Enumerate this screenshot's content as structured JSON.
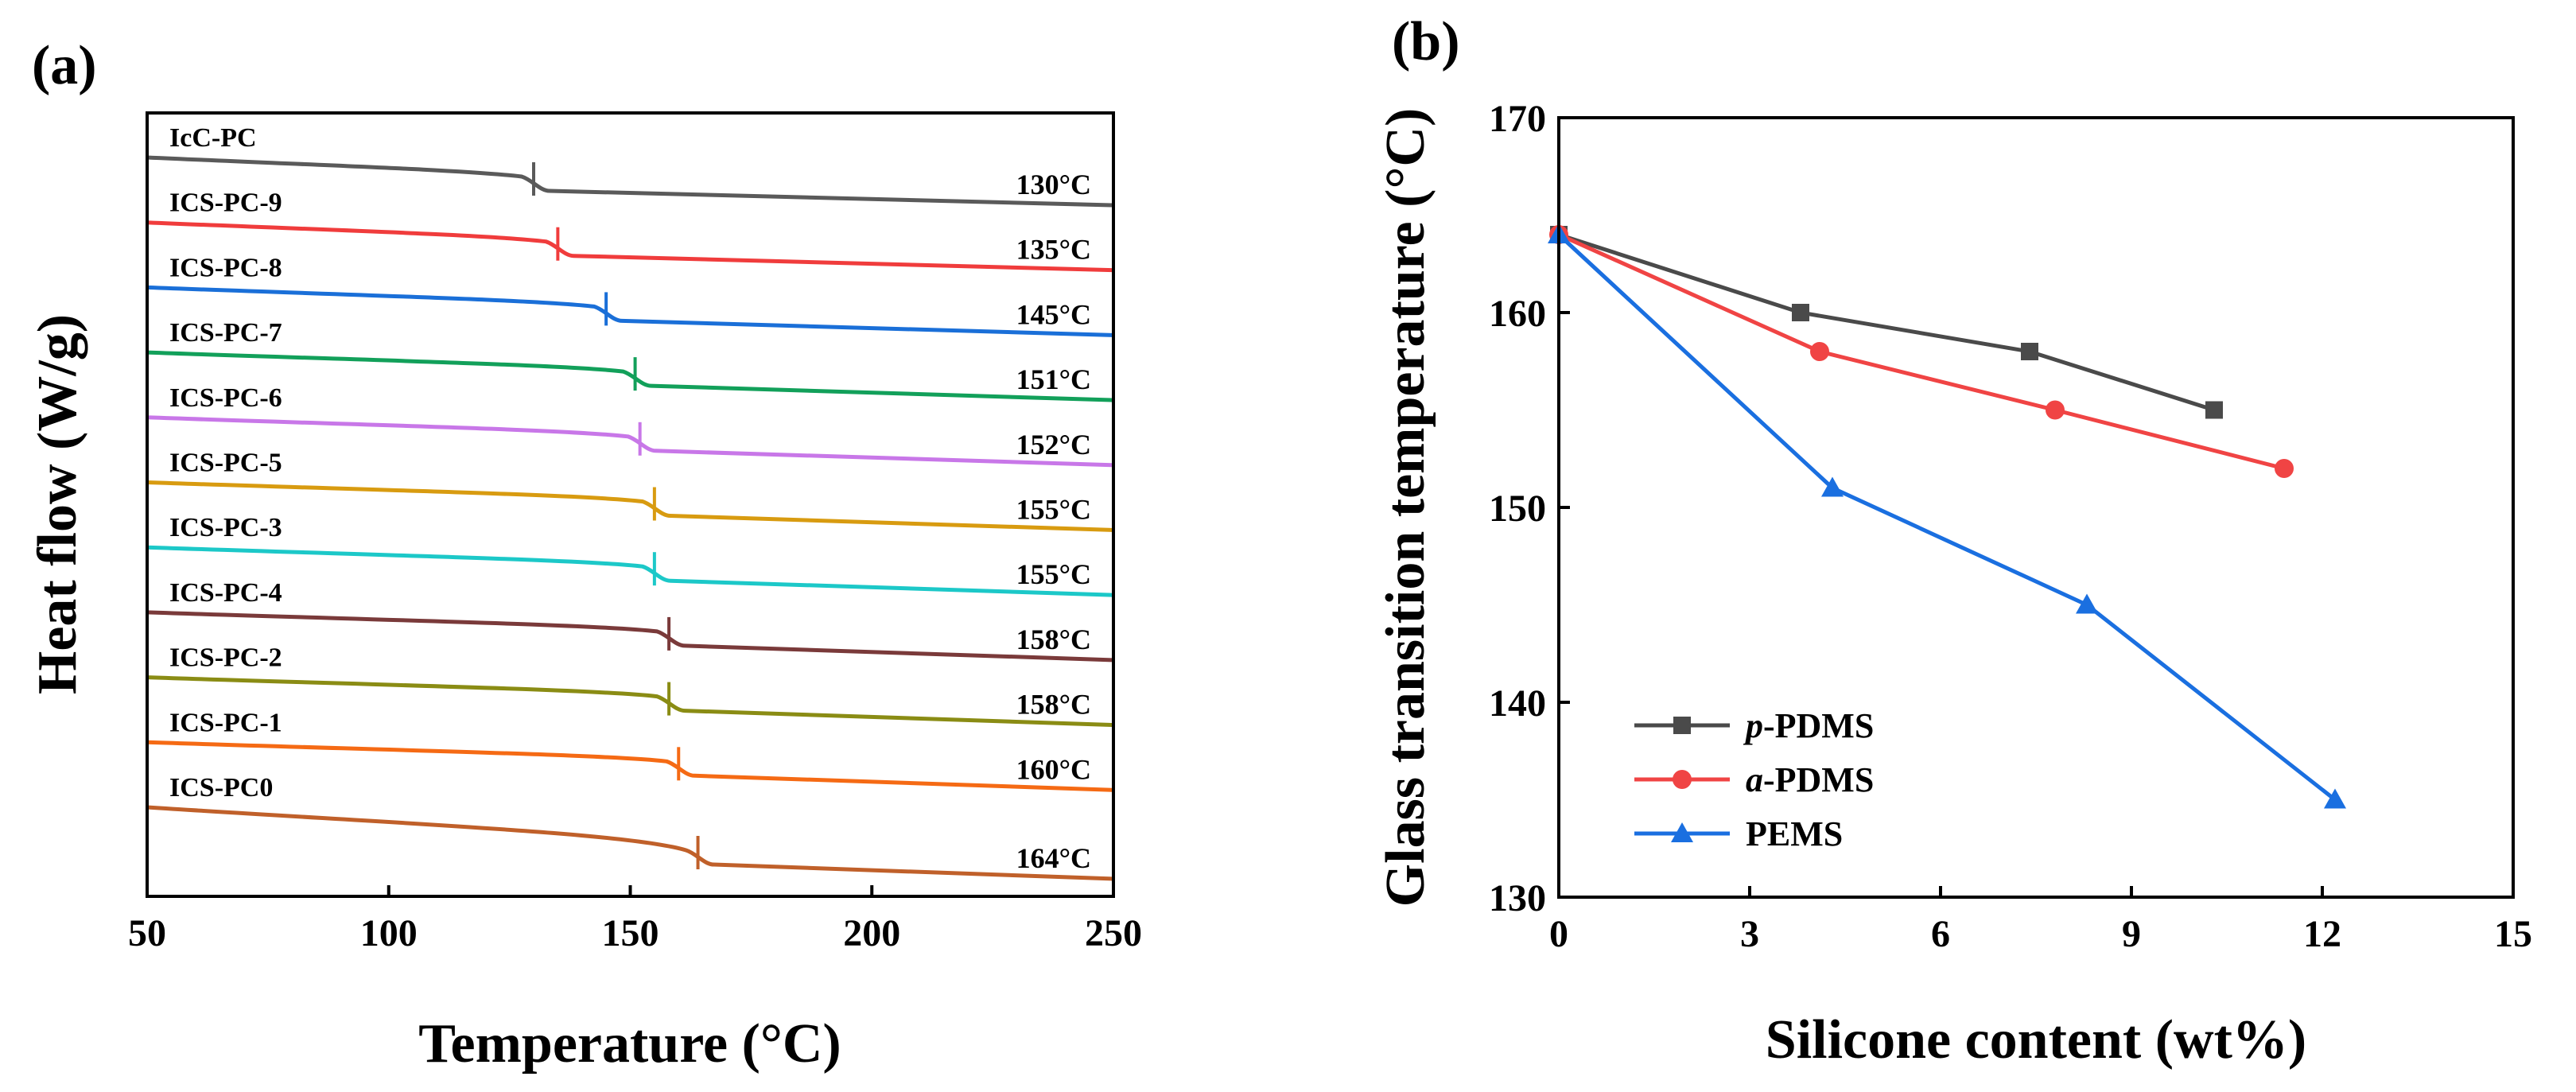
{
  "chart_data": [
    {
      "type": "line",
      "panel_label": "(a)",
      "xlabel": "Temperature (°C)",
      "ylabel": "Heat flow (W/g)",
      "xlim": [
        50,
        250
      ],
      "xticks": [
        50,
        100,
        150,
        200,
        250
      ],
      "series": [
        {
          "name": "IcC-PC",
          "tg": 130,
          "tg_label": "130°C",
          "color": "#5a5a5a"
        },
        {
          "name": "ICS-PC-9",
          "tg": 135,
          "tg_label": "135°C",
          "color": "#f03c3c"
        },
        {
          "name": "ICS-PC-8",
          "tg": 145,
          "tg_label": "145°C",
          "color": "#1a6fd8"
        },
        {
          "name": "ICS-PC-7",
          "tg": 151,
          "tg_label": "151°C",
          "color": "#12a05a"
        },
        {
          "name": "ICS-PC-6",
          "tg": 152,
          "tg_label": "152°C",
          "color": "#c877e8"
        },
        {
          "name": "ICS-PC-5",
          "tg": 155,
          "tg_label": "155°C",
          "color": "#d89b10"
        },
        {
          "name": "ICS-PC-3",
          "tg": 155,
          "tg_label": "155°C",
          "color": "#1cc8c8"
        },
        {
          "name": "ICS-PC-4",
          "tg": 158,
          "tg_label": "158°C",
          "color": "#7a3a3a"
        },
        {
          "name": "ICS-PC-2",
          "tg": 158,
          "tg_label": "158°C",
          "color": "#8a8c14"
        },
        {
          "name": "ICS-PC-1",
          "tg": 160,
          "tg_label": "160°C",
          "color": "#f56a14"
        },
        {
          "name": "ICS-PC0",
          "tg": 164,
          "tg_label": "164°C",
          "color": "#c0602a"
        }
      ]
    },
    {
      "type": "line",
      "panel_label": "(b)",
      "xlabel": "Silicone content (wt%)",
      "ylabel": "Glass transition temperature (°C)",
      "xlim": [
        0,
        15
      ],
      "ylim": [
        130,
        170
      ],
      "xticks": [
        0,
        3,
        6,
        9,
        12,
        15
      ],
      "yticks": [
        130,
        140,
        150,
        160,
        170
      ],
      "legend_position": "bottom-left",
      "series": [
        {
          "name": "p-PDMS",
          "prefix": "p",
          "suffix": "-PDMS",
          "marker": "square",
          "color": "#4a4a4a",
          "x": [
            0,
            3.8,
            7.4,
            10.3
          ],
          "y": [
            164,
            160,
            158,
            155
          ]
        },
        {
          "name": "a-PDMS",
          "prefix": "a",
          "suffix": "-PDMS",
          "marker": "circle",
          "color": "#f04444",
          "x": [
            0,
            4.1,
            7.8,
            11.4
          ],
          "y": [
            164,
            158,
            155,
            152
          ]
        },
        {
          "name": "PEMS",
          "prefix": "",
          "suffix": "PEMS",
          "marker": "triangle",
          "color": "#1a6fe0",
          "x": [
            0,
            4.3,
            8.3,
            12.2
          ],
          "y": [
            164,
            151,
            145,
            135
          ]
        }
      ]
    }
  ]
}
